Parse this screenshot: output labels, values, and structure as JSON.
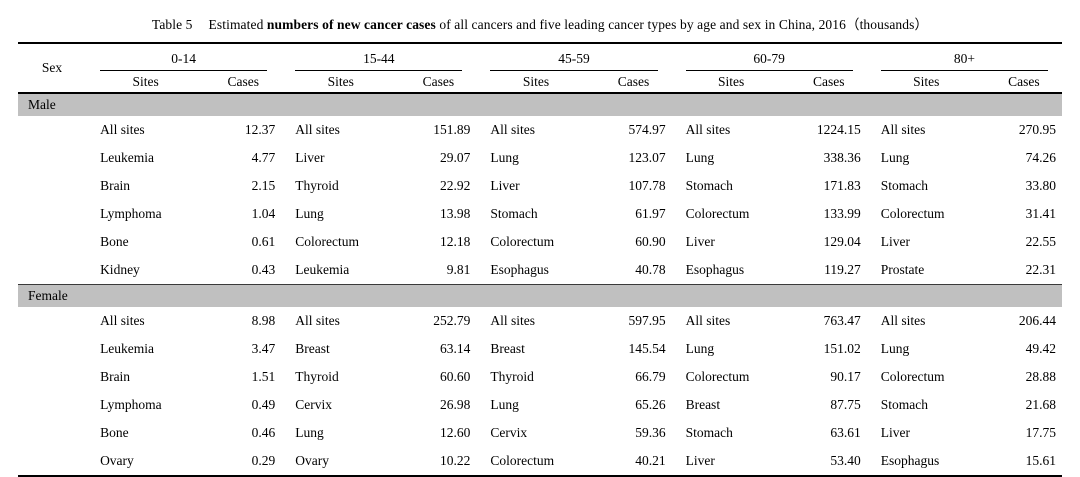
{
  "title": {
    "prefix": "Table 5",
    "pre_bold": "Estimated",
    "bold": "numbers of new cancer cases",
    "suffix": "of all cancers and five leading cancer types by age and sex in China, 2016（thousands）"
  },
  "table": {
    "sex_header": "Sex",
    "age_groups": [
      "0-14",
      "15-44",
      "45-59",
      "60-79",
      "80+"
    ],
    "sub_headers": [
      "Sites",
      "Cases"
    ],
    "sections": [
      {
        "label": "Male",
        "rows": [
          [
            [
              "All sites",
              "12.37"
            ],
            [
              "All sites",
              "151.89"
            ],
            [
              "All sites",
              "574.97"
            ],
            [
              "All sites",
              "1224.15"
            ],
            [
              "All sites",
              "270.95"
            ]
          ],
          [
            [
              "Leukemia",
              "4.77"
            ],
            [
              "Liver",
              "29.07"
            ],
            [
              "Lung",
              "123.07"
            ],
            [
              "Lung",
              "338.36"
            ],
            [
              "Lung",
              "74.26"
            ]
          ],
          [
            [
              "Brain",
              "2.15"
            ],
            [
              "Thyroid",
              "22.92"
            ],
            [
              "Liver",
              "107.78"
            ],
            [
              "Stomach",
              "171.83"
            ],
            [
              "Stomach",
              "33.80"
            ]
          ],
          [
            [
              "Lymphoma",
              "1.04"
            ],
            [
              "Lung",
              "13.98"
            ],
            [
              "Stomach",
              "61.97"
            ],
            [
              "Colorectum",
              "133.99"
            ],
            [
              "Colorectum",
              "31.41"
            ]
          ],
          [
            [
              "Bone",
              "0.61"
            ],
            [
              "Colorectum",
              "12.18"
            ],
            [
              "Colorectum",
              "60.90"
            ],
            [
              "Liver",
              "129.04"
            ],
            [
              "Liver",
              "22.55"
            ]
          ],
          [
            [
              "Kidney",
              "0.43"
            ],
            [
              "Leukemia",
              "9.81"
            ],
            [
              "Esophagus",
              "40.78"
            ],
            [
              "Esophagus",
              "119.27"
            ],
            [
              "Prostate",
              "22.31"
            ]
          ]
        ]
      },
      {
        "label": "Female",
        "rows": [
          [
            [
              "All sites",
              "8.98"
            ],
            [
              "All sites",
              "252.79"
            ],
            [
              "All sites",
              "597.95"
            ],
            [
              "All sites",
              "763.47"
            ],
            [
              "All sites",
              "206.44"
            ]
          ],
          [
            [
              "Leukemia",
              "3.47"
            ],
            [
              "Breast",
              "63.14"
            ],
            [
              "Breast",
              "145.54"
            ],
            [
              "Lung",
              "151.02"
            ],
            [
              "Lung",
              "49.42"
            ]
          ],
          [
            [
              "Brain",
              "1.51"
            ],
            [
              "Thyroid",
              "60.60"
            ],
            [
              "Thyroid",
              "66.79"
            ],
            [
              "Colorectum",
              "90.17"
            ],
            [
              "Colorectum",
              "28.88"
            ]
          ],
          [
            [
              "Lymphoma",
              "0.49"
            ],
            [
              "Cervix",
              "26.98"
            ],
            [
              "Lung",
              "65.26"
            ],
            [
              "Breast",
              "87.75"
            ],
            [
              "Stomach",
              "21.68"
            ]
          ],
          [
            [
              "Bone",
              "0.46"
            ],
            [
              "Lung",
              "12.60"
            ],
            [
              "Cervix",
              "59.36"
            ],
            [
              "Stomach",
              "63.61"
            ],
            [
              "Liver",
              "17.75"
            ]
          ],
          [
            [
              "Ovary",
              "0.29"
            ],
            [
              "Ovary",
              "10.22"
            ],
            [
              "Colorectum",
              "40.21"
            ],
            [
              "Liver",
              "53.40"
            ],
            [
              "Esophagus",
              "15.61"
            ]
          ]
        ]
      }
    ]
  },
  "colors": {
    "band_background": "#c0c0c0",
    "rule": "#000000",
    "text": "#000000"
  }
}
